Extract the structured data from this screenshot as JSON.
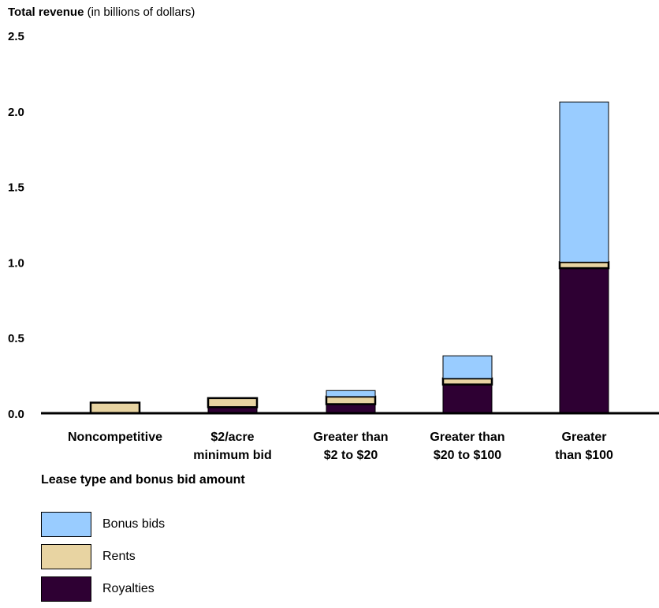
{
  "chart_data": {
    "type": "bar",
    "stacked": true,
    "title_bold": "Total revenue",
    "title_rest": " (in billions of dollars)",
    "xlabel": "Lease type and bonus bid amount",
    "ylim": [
      0,
      2.5
    ],
    "yticks": [
      "0.0",
      "0.5",
      "1.0",
      "1.5",
      "2.0",
      "2.5"
    ],
    "grid": false,
    "legend_position": "bottom-left",
    "categories": [
      [
        "Noncompetitive"
      ],
      [
        "$2/acre",
        "minimum bid"
      ],
      [
        "Greater than",
        "$2 to $20"
      ],
      [
        "Greater than",
        "$20 to $100"
      ],
      [
        "Greater",
        "than $100"
      ]
    ],
    "series": [
      {
        "name": "Royalties",
        "color": "#2e0033",
        "values": [
          0.0,
          0.04,
          0.06,
          0.19,
          0.96
        ]
      },
      {
        "name": "Rents",
        "color": "#e8d4a2",
        "values": [
          0.07,
          0.06,
          0.05,
          0.04,
          0.04
        ]
      },
      {
        "name": "Bonus bids",
        "color": "#99ccff",
        "values": [
          0.0,
          0.0,
          0.04,
          0.15,
          1.06
        ]
      }
    ],
    "legend_order": [
      "Bonus bids",
      "Rents",
      "Royalties"
    ]
  }
}
